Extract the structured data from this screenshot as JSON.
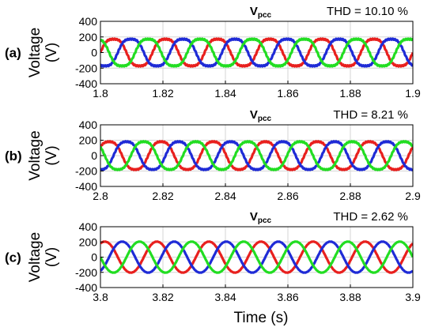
{
  "xlabel": "Time (s)",
  "chart_data": [
    {
      "type": "line",
      "panel_label": "(a)",
      "title": "V",
      "title_subscript": "pcc",
      "annotation": "THD = 10.10 %",
      "ylabel": "Voltage",
      "ylabel_unit": "(V)",
      "xlim": [
        1.8,
        1.9
      ],
      "ylim": [
        -400,
        400
      ],
      "x_ticks": [
        "1.8",
        "1.82",
        "1.84",
        "1.86",
        "1.88",
        "1.9"
      ],
      "y_ticks": [
        "400",
        "200",
        "0",
        "-200",
        "-400"
      ],
      "grid": true,
      "frequency_hz": 60,
      "amplitude": 200,
      "distortion": 0.16,
      "series": [
        {
          "color": "#e8201e",
          "phase_deg": 0
        },
        {
          "color": "#1f2bd6",
          "phase_deg": -120
        },
        {
          "color": "#22dd22",
          "phase_deg": 120
        }
      ]
    },
    {
      "type": "line",
      "panel_label": "(b)",
      "title": "V",
      "title_subscript": "pcc",
      "annotation": "THD = 8.21 %",
      "ylabel": "Voltage",
      "ylabel_unit": "(V)",
      "xlim": [
        2.8,
        2.9
      ],
      "ylim": [
        -400,
        400
      ],
      "x_ticks": [
        "2.8",
        "2.82",
        "2.84",
        "2.86",
        "2.88",
        "2.9"
      ],
      "y_ticks": [
        "400",
        "200",
        "0",
        "-200",
        "-400"
      ],
      "grid": true,
      "frequency_hz": 60,
      "amplitude": 205,
      "distortion": 0.13,
      "series": [
        {
          "color": "#e8201e",
          "phase_deg": 30
        },
        {
          "color": "#1f2bd6",
          "phase_deg": -90
        },
        {
          "color": "#22dd22",
          "phase_deg": 150
        }
      ]
    },
    {
      "type": "line",
      "panel_label": "(c)",
      "title": "V",
      "title_subscript": "pcc",
      "annotation": "THD = 2.62 %",
      "ylabel": "Voltage",
      "ylabel_unit": "(V)",
      "xlim": [
        3.8,
        3.9
      ],
      "ylim": [
        -400,
        400
      ],
      "x_ticks": [
        "3.8",
        "3.82",
        "3.84",
        "3.86",
        "3.88",
        "3.9"
      ],
      "y_ticks": [
        "400",
        "200",
        "0",
        "-200",
        "-400"
      ],
      "grid": true,
      "frequency_hz": 60,
      "amplitude": 210,
      "distortion": 0.03,
      "series": [
        {
          "color": "#e8201e",
          "phase_deg": 60
        },
        {
          "color": "#1f2bd6",
          "phase_deg": -60
        },
        {
          "color": "#22dd22",
          "phase_deg": 180
        }
      ]
    }
  ]
}
